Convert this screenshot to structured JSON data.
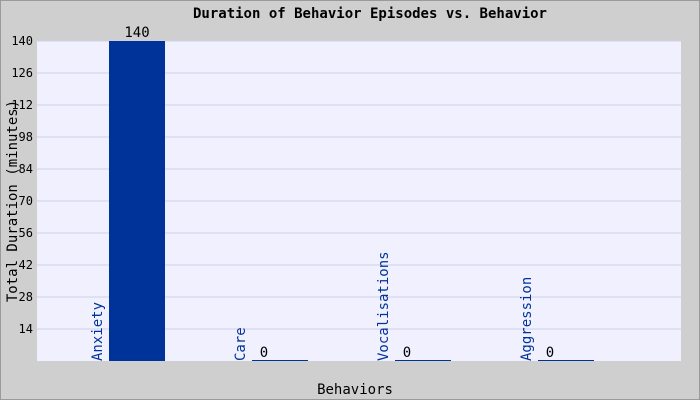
{
  "chart_data": {
    "type": "bar",
    "title": "Duration of Behavior Episodes vs. Behavior",
    "xlabel": "Behaviors",
    "ylabel": "Total Duration (minutes)",
    "categories": [
      "Anxiety",
      "Care",
      "Vocalisations",
      "Aggression"
    ],
    "values": [
      140,
      0,
      0,
      0
    ],
    "value_labels": [
      "140",
      "0",
      "0",
      "0"
    ],
    "ylim": [
      0,
      140
    ],
    "yticks": [
      "14",
      "28",
      "42",
      "56",
      "70",
      "84",
      "98",
      "112",
      "126",
      "140"
    ],
    "grid": true,
    "colors": {
      "bar": "#003399",
      "plot_background": "#f0f0ff",
      "grid": "#d0d0e8",
      "outer_background": "#cfcfcf",
      "category_text": "#003399"
    }
  }
}
